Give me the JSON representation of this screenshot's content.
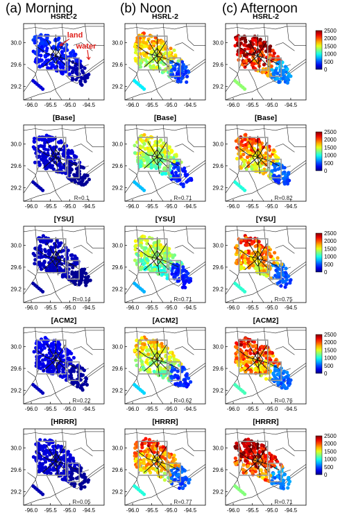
{
  "column_titles": [
    "(a) Morning",
    "(b) Noon",
    "(c) Afternoon"
  ],
  "annotations": {
    "land": "land",
    "water": "water",
    "color": "#e0201b"
  },
  "colorbar": {
    "ticks": [
      "2500",
      "2000",
      "1500",
      "1000",
      "500",
      "0"
    ],
    "vmin": 0,
    "vmax": 2500
  },
  "chart_data": {
    "type": "scatter",
    "description_units": "map panels of boundary-layer height along flight tracks (color scale 0–2500)",
    "x_ticks": [
      "-96.0",
      "-95.5",
      "-95.0",
      "-94.5"
    ],
    "y_ticks": [
      "30.0",
      "29.6",
      "29.2"
    ],
    "xlim": [
      -96.2,
      -94.1
    ],
    "ylim": [
      28.95,
      30.35
    ],
    "rows": [
      {
        "title": "HSRL-2",
        "panels": [
          {
            "column": "Morning",
            "level": 350,
            "r": ""
          },
          {
            "column": "Noon",
            "level": 1500,
            "r": ""
          },
          {
            "column": "Afternoon",
            "level": 2150,
            "r": ""
          }
        ]
      },
      {
        "title": "[Base]",
        "panels": [
          {
            "column": "Morning",
            "level": 200,
            "r": "R=0.1"
          },
          {
            "column": "Noon",
            "level": 1300,
            "r": "R=0.71"
          },
          {
            "column": "Afternoon",
            "level": 1700,
            "r": "R=0.82"
          }
        ]
      },
      {
        "title": "[YSU]",
        "panels": [
          {
            "column": "Morning",
            "level": 150,
            "r": "R=0.14"
          },
          {
            "column": "Noon",
            "level": 1250,
            "r": "R=0.71"
          },
          {
            "column": "Afternoon",
            "level": 1750,
            "r": "R=0.75"
          }
        ]
      },
      {
        "title": "[ACM2]",
        "panels": [
          {
            "column": "Morning",
            "level": 250,
            "r": "R=0.22"
          },
          {
            "column": "Noon",
            "level": 1400,
            "r": "R=0.62"
          },
          {
            "column": "Afternoon",
            "level": 1850,
            "r": "R=0.76"
          }
        ]
      },
      {
        "title": "[HRRR]",
        "panels": [
          {
            "column": "Morning",
            "level": 200,
            "r": "R=0.05"
          },
          {
            "column": "Noon",
            "level": 1700,
            "r": "R=0.77"
          },
          {
            "column": "Afternoon",
            "level": 2100,
            "r": "R=0.71"
          }
        ]
      }
    ]
  }
}
